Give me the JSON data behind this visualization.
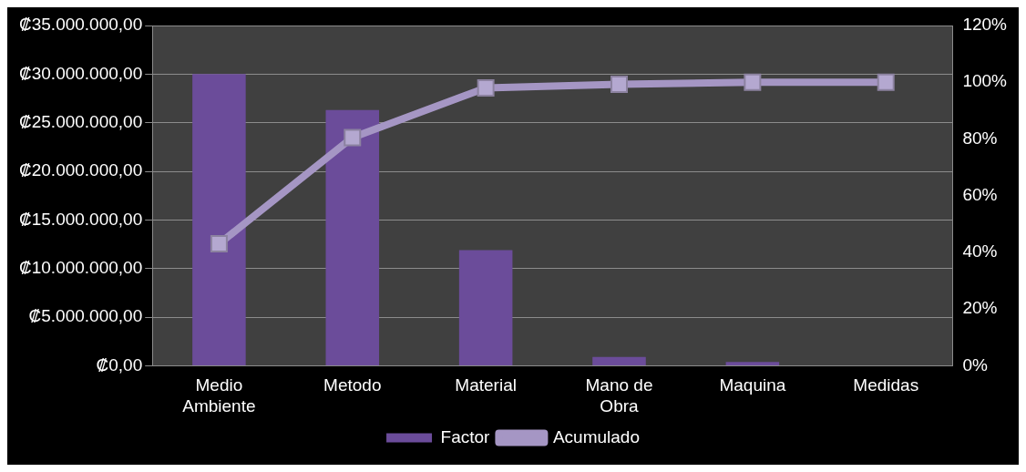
{
  "chart_data": {
    "type": "bar",
    "categories": [
      "Medio Ambiente",
      "Metodo",
      "Material",
      "Mano de Obra",
      "Maquina",
      "Medidas"
    ],
    "series": [
      {
        "name": "Factor",
        "color": "#6b4c9a",
        "values": [
          30000000,
          26300000,
          11900000,
          900000,
          400000,
          0
        ]
      },
      {
        "name": "Acumulado",
        "type": "line",
        "axis": "y2",
        "color": "#a596c4",
        "marker": "square",
        "values": [
          43,
          80.5,
          98,
          99.3,
          100,
          100
        ]
      }
    ],
    "ylim": [
      0,
      35000000
    ],
    "yticks": [
      {
        "value": 0,
        "label": "₡0,00"
      },
      {
        "value": 5000000,
        "label": "₡5.000.000,00"
      },
      {
        "value": 10000000,
        "label": "₡10.000.000,00"
      },
      {
        "value": 15000000,
        "label": "₡15.000.000,00"
      },
      {
        "value": 20000000,
        "label": "₡20.000.000,00"
      },
      {
        "value": 25000000,
        "label": "₡25.000.000,00"
      },
      {
        "value": 30000000,
        "label": "₡30.000.000,00"
      },
      {
        "value": 35000000,
        "label": "₡35.000.000,00"
      }
    ],
    "y2lim": [
      0,
      120
    ],
    "y2ticks": [
      {
        "value": 0,
        "label": "0%"
      },
      {
        "value": 20,
        "label": "20%"
      },
      {
        "value": 40,
        "label": "40%"
      },
      {
        "value": 60,
        "label": "60%"
      },
      {
        "value": 80,
        "label": "80%"
      },
      {
        "value": 100,
        "label": "100%"
      },
      {
        "value": 120,
        "label": "120%"
      }
    ],
    "grid": "y",
    "legend": "bottom"
  }
}
